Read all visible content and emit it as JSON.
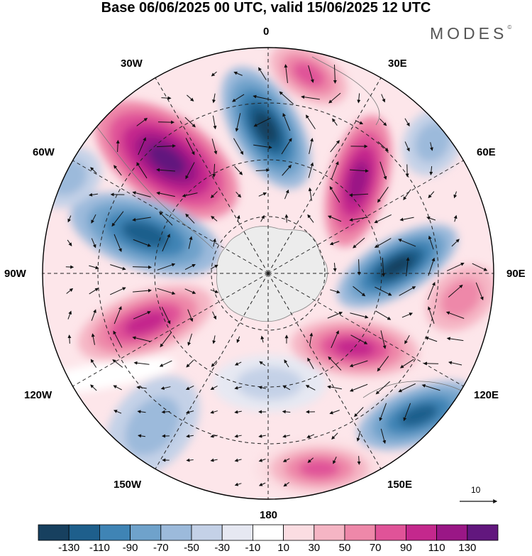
{
  "title": "Base 06/06/2025 00 UTC, valid 15/06/2025 12 UTC",
  "brand": {
    "name": "MODES",
    "mark": "©"
  },
  "longitude_labels": {
    "lon_0": "0",
    "lon_30e": "30E",
    "lon_60e": "60E",
    "lon_90e": "90E",
    "lon_120e": "120E",
    "lon_150e": "150E",
    "lon_180": "180",
    "lon_150w": "150W",
    "lon_120w": "120W",
    "lon_90w": "90W",
    "lon_60w": "60W",
    "lon_30w": "30W"
  },
  "reference_vector": {
    "label": "10"
  },
  "colorbar": {
    "colors": [
      "#17405f",
      "#1e5f8c",
      "#3f84b5",
      "#6fa2cb",
      "#9cbadb",
      "#c4d1e7",
      "#e6e8f2",
      "#ffffff",
      "#fbdde2",
      "#f5b5c4",
      "#ee88a9",
      "#e05398",
      "#c4288d",
      "#9a1786",
      "#62177e"
    ],
    "ticks": [
      "-130",
      "-110",
      "-90",
      "-70",
      "-50",
      "-30",
      "-10",
      "10",
      "30",
      "50",
      "70",
      "90",
      "110",
      "130"
    ]
  },
  "map": {
    "background": "#fde6ea",
    "land": "#ececec",
    "projection": "south-polar-stereographic"
  }
}
